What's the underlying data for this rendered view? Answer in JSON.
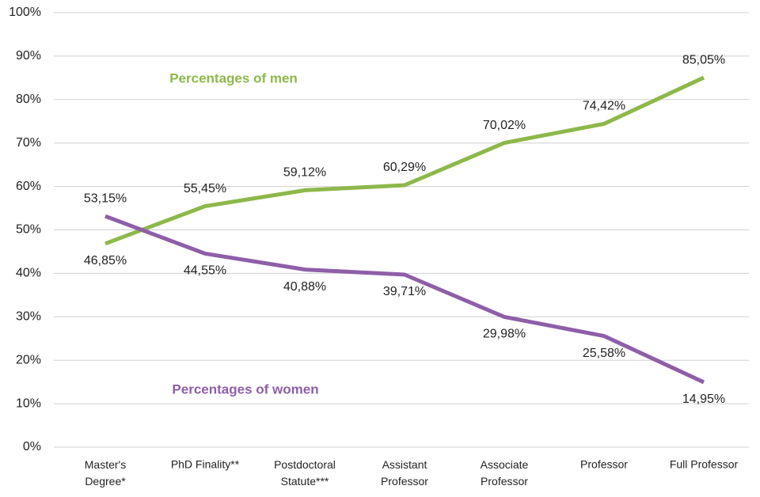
{
  "chart_data": {
    "type": "line",
    "categories": [
      "Master's\nDegree*",
      "PhD Finality**",
      "Postdoctoral\nStatute***",
      "Assistant\nProfessor",
      "Associate\nProfessor",
      "Professor",
      "Full Professor"
    ],
    "series": [
      {
        "name": "Percentages of men",
        "color": "#8db84a",
        "values": [
          46.85,
          55.45,
          59.12,
          60.29,
          70.02,
          74.42,
          85.05
        ],
        "value_labels": [
          "46,85%",
          "55,45%",
          "59,12%",
          "60,29%",
          "70,02%",
          "74,42%",
          "85,05%"
        ]
      },
      {
        "name": "Percentages of women",
        "color": "#8e5ea8",
        "values": [
          53.15,
          44.55,
          40.88,
          39.71,
          29.98,
          25.58,
          14.95
        ],
        "value_labels": [
          "53,15%",
          "44,55%",
          "40,88%",
          "39,71%",
          "29,98%",
          "25,58%",
          "14,95%"
        ]
      }
    ],
    "ylim": [
      0,
      100
    ],
    "yticks": [
      {
        "value": 0,
        "label": "0%"
      },
      {
        "value": 10,
        "label": "10%"
      },
      {
        "value": 20,
        "label": "20%"
      },
      {
        "value": 30,
        "label": "30%"
      },
      {
        "value": 40,
        "label": "40%"
      },
      {
        "value": 50,
        "label": "50%"
      },
      {
        "value": 60,
        "label": "60%"
      },
      {
        "value": 70,
        "label": "70%"
      },
      {
        "value": 80,
        "label": "80%"
      },
      {
        "value": 90,
        "label": "90%"
      },
      {
        "value": 100,
        "label": "100%"
      }
    ],
    "grid": true
  }
}
